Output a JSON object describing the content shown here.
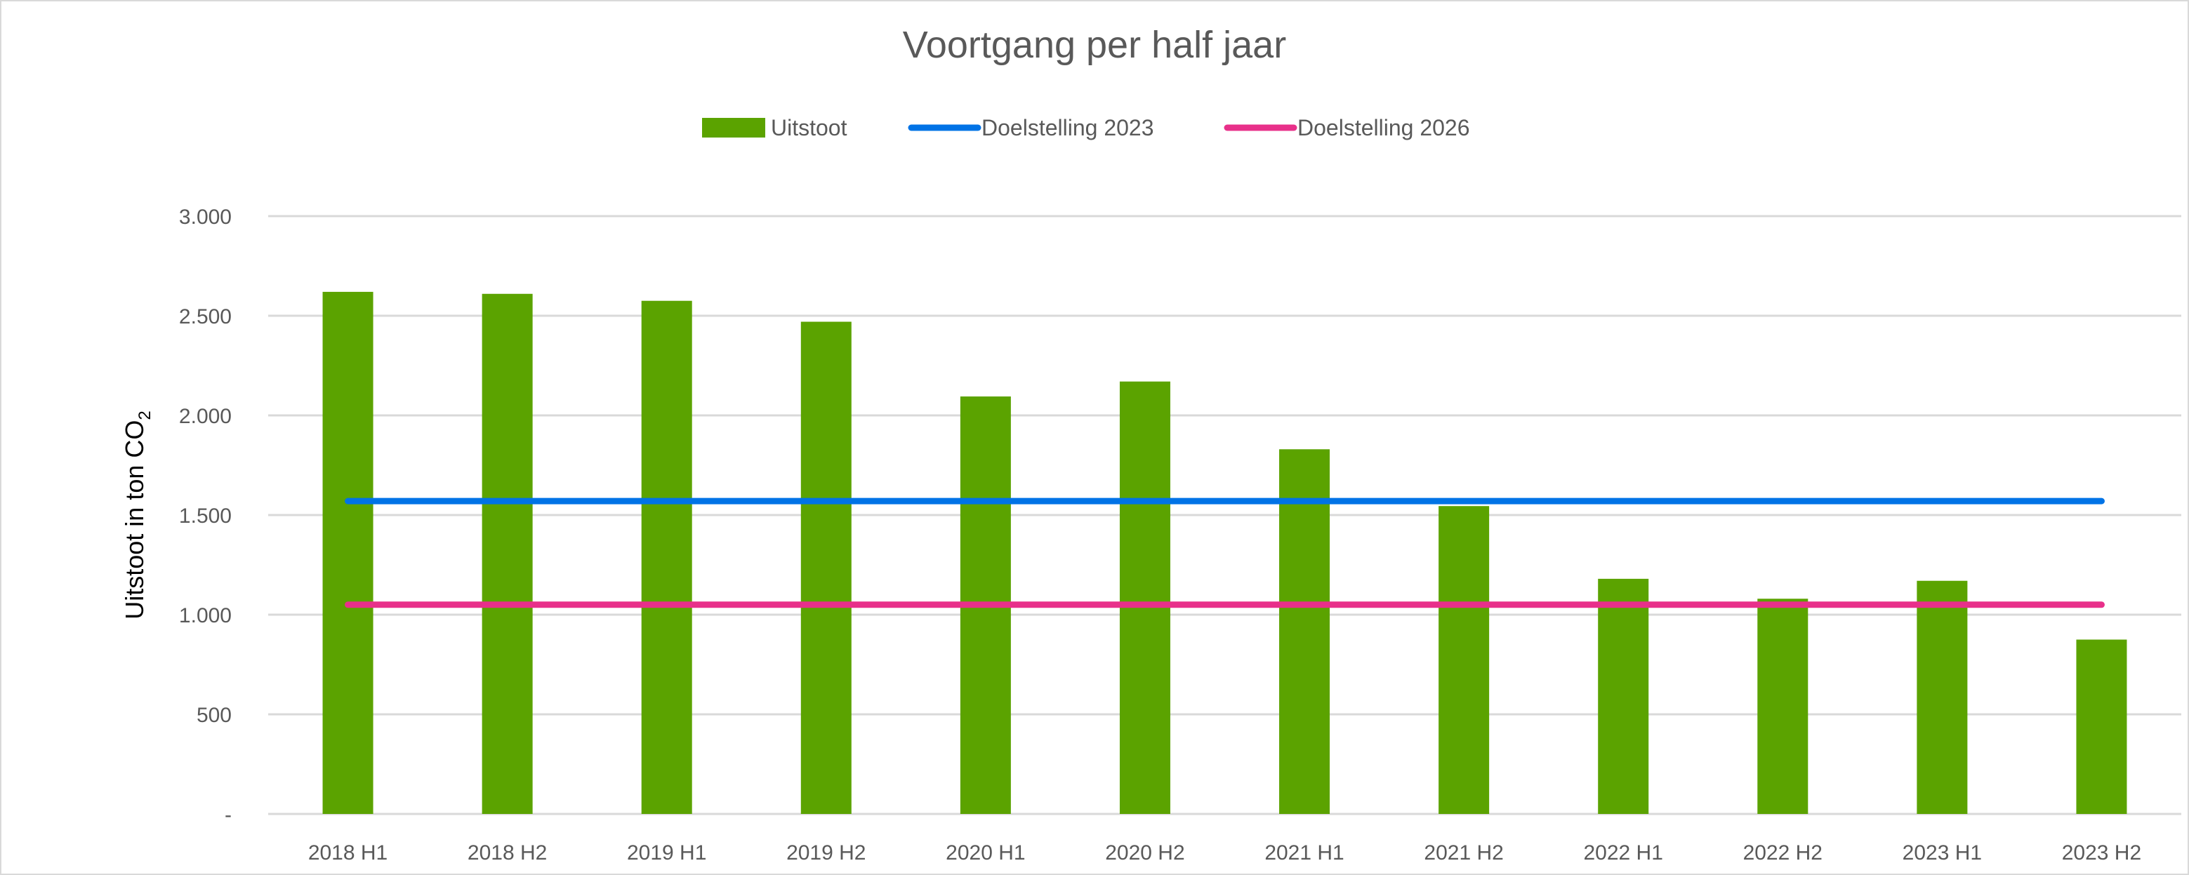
{
  "chart_data": {
    "type": "bar",
    "title": "Voortgang per half jaar",
    "ylabel": "Uitstoot in ton CO",
    "ylabel_subscript": "2",
    "ylim": [
      0,
      3000
    ],
    "yticks": [
      0,
      500,
      1000,
      1500,
      2000,
      2500,
      3000
    ],
    "ytick_labels": [
      "-",
      "500",
      "1.000",
      "1.500",
      "2.000",
      "2.500",
      "3.000"
    ],
    "grid": true,
    "legend": "top",
    "categories": [
      "2018 H1",
      "2018 H2",
      "2019 H1",
      "2019 H2",
      "2020 H1",
      "2020 H2",
      "2021 H1",
      "2021 H2",
      "2022 H1",
      "2022 H2",
      "2023 H1",
      "2023 H2"
    ],
    "series": [
      {
        "name": "Uitstoot",
        "type": "bar",
        "color": "#5BA300",
        "values": [
          2620,
          2610,
          2575,
          2470,
          2095,
          2170,
          1830,
          1545,
          1180,
          1080,
          1170,
          875
        ]
      },
      {
        "name": "Doelstelling 2023",
        "type": "line",
        "color": "#0073E6",
        "values": [
          1570,
          1570,
          1570,
          1570,
          1570,
          1570,
          1570,
          1570,
          1570,
          1570,
          1570,
          1570
        ]
      },
      {
        "name": "Doelstelling 2026",
        "type": "line",
        "color": "#E8308A",
        "values": [
          1050,
          1050,
          1050,
          1050,
          1050,
          1050,
          1050,
          1050,
          1050,
          1050,
          1050,
          1050
        ]
      }
    ]
  }
}
